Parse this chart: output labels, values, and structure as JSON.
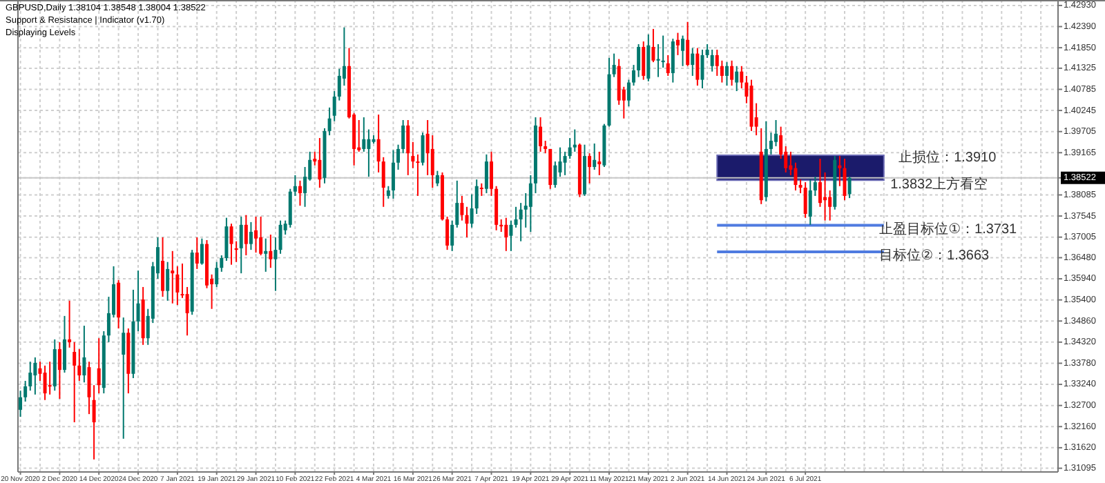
{
  "chart_data": {
    "type": "candlestick",
    "title": "GBPUSD,Daily  1.38104 1.38548 1.38004 1.38522",
    "subtitle": "Support & Resistance | Indicator (v1.70)",
    "annotations": [
      "Displaying Levels",
      "1.3832上方看空"
    ],
    "colors": [
      "#00786e",
      "#00786e",
      "#00786e",
      "#00786e",
      "#ff0000",
      "#ff0000",
      "#ff0000",
      "#00786e",
      "#ff0000",
      "#00786e",
      "#ff0000",
      "#ff0000",
      "#ff0000",
      "#00786e",
      "#ff0000",
      "#ff0000",
      "#ff0000",
      "#00786e",
      "#00786e",
      "#00786e",
      "#ff0000",
      "#00786e",
      "#ff0000",
      "#00786e",
      "#00786e",
      "#ff0000",
      "#00786e",
      "#00786e",
      "#00786e",
      "#ff0000",
      "#00786e",
      "#ff0000",
      "#ff0000",
      "#ff0000",
      "#ff0000",
      "#00786e",
      "#ff0000",
      "#00786e",
      "#ff0000",
      "#ff0000",
      "#00786e",
      "#00786e",
      "#00786e",
      "#ff0000",
      "#ff0000",
      "#00786e",
      "#ff0000",
      "#00786e",
      "#ff0000",
      "#ff0000",
      "#00786e",
      "#ff0000",
      "#00786e",
      "#00786e",
      "#00786e",
      "#00786e",
      "#00786e",
      "#ff0000",
      "#00786e",
      "#00786e",
      "#ff0000",
      "#ff0000",
      "#00786e",
      "#00786e",
      "#00786e",
      "#00786e",
      "#00786e",
      "#ff0000",
      "#ff0000",
      "#ff0000",
      "#00786e",
      "#00786e",
      "#00786e",
      "#ff0000",
      "#ff0000",
      "#00786e",
      "#00786e",
      "#00786e",
      "#00786e",
      "#ff0000",
      "#ff0000",
      "#ff0000",
      "#00786e",
      "#ff0000",
      "#ff0000",
      "#00786e",
      "#ff0000",
      "#ff0000",
      "#00786e",
      "#00786e",
      "#ff0000",
      "#ff0000",
      "#00786e",
      "#00786e",
      "#ff0000",
      "#00786e",
      "#ff0000",
      "#ff0000",
      "#ff0000",
      "#ff0000",
      "#00786e",
      "#00786e",
      "#00786e",
      "#00786e",
      "#00786e",
      "#00786e",
      "#ff0000",
      "#ff0000",
      "#ff0000",
      "#00786e",
      "#00786e",
      "#00786e",
      "#00786e",
      "#00786e",
      "#ff0000",
      "#00786e",
      "#ff0000",
      "#00786e",
      "#ff0000",
      "#00786e",
      "#00786e",
      "#00786e",
      "#ff0000",
      "#ff0000",
      "#00786e",
      "#00786e",
      "#00786e",
      "#ff0000",
      "#00786e",
      "#ff0000",
      "#00786e",
      "#00786e",
      "#ff0000",
      "#00786e",
      "#ff0000",
      "#00786e",
      "#ff0000",
      "#00786e",
      "#ff0000",
      "#00786e",
      "#00786e",
      "#00786e",
      "#ff0000",
      "#ff0000",
      "#00786e",
      "#ff0000",
      "#00786e",
      "#ff0000",
      "#ff0000",
      "#ff0000",
      "#ff0000",
      "#ff0000",
      "#00786e",
      "#00786e",
      "#00786e",
      "#ff0000",
      "#ff0000",
      "#ff0000",
      "#ff0000",
      "#ff0000",
      "#ff0000",
      "#00786e",
      "#00786e",
      "#ff0000",
      "#ff0000",
      "#ff0000",
      "#00786e",
      "#ff0000",
      "#ff0000",
      "#00786e",
      null,
      null,
      null,
      null,
      null,
      null,
      null,
      null,
      null,
      null,
      null,
      null,
      null,
      null,
      null,
      null,
      null,
      null,
      null,
      null,
      null,
      null,
      null,
      null,
      null,
      null,
      null,
      null,
      null,
      null,
      null,
      null,
      null,
      null,
      null,
      null,
      null,
      null,
      null,
      null,
      null,
      null
    ],
    "ylim": [
      1.31,
      1.4307
    ],
    "yticks": [
      {
        "value": 1.4293,
        "label": "1.42930"
      },
      {
        "value": 1.4239,
        "label": "1.42390"
      },
      {
        "value": 1.4185,
        "label": "1.41850"
      },
      {
        "value": 1.41325,
        "label": "1.41325"
      },
      {
        "value": 1.40785,
        "label": "1.40785"
      },
      {
        "value": 1.40245,
        "label": "1.40245"
      },
      {
        "value": 1.39705,
        "label": "1.39705"
      },
      {
        "value": 1.39165,
        "label": "1.39165"
      },
      {
        "value": 1.38522,
        "label": "1.38522"
      },
      {
        "value": 1.38085,
        "label": "1.38085"
      },
      {
        "value": 1.37545,
        "label": "1.37545"
      },
      {
        "value": 1.37005,
        "label": "1.37005"
      },
      {
        "value": 1.3648,
        "label": "1.36480"
      },
      {
        "value": 1.3594,
        "label": "1.35940"
      },
      {
        "value": 1.354,
        "label": "1.35400"
      },
      {
        "value": 1.3486,
        "label": "1.34860"
      },
      {
        "value": 1.3432,
        "label": "1.34320"
      },
      {
        "value": 1.3378,
        "label": "1.33780"
      },
      {
        "value": 1.3324,
        "label": "1.33240"
      },
      {
        "value": 1.327,
        "label": "1.32700"
      },
      {
        "value": 1.3216,
        "label": "1.32160"
      },
      {
        "value": 1.3162,
        "label": "1.31620"
      },
      {
        "value": 1.31095,
        "label": "1.31095"
      }
    ],
    "grid": true,
    "bands": [
      {
        "axis": "y",
        "from": 1.3846,
        "to": 1.391,
        "label": "止损位：1.3910",
        "color": "#1b1b6b"
      }
    ],
    "ref_lines": [
      {
        "axis": "y",
        "value": 1.38522,
        "color": "#c8c8c8"
      },
      {
        "axis": "y",
        "value": 1.3731,
        "label": "止盈目标位①：1.3731",
        "color": "#4f7be0"
      },
      {
        "axis": "y",
        "value": 1.3663,
        "label": "目标位②：1.3663",
        "color": "#4f7be0"
      }
    ],
    "categories": [
      "20 Nov 2020",
      null,
      null,
      null,
      null,
      null,
      null,
      null,
      "2 Dec 2020",
      null,
      null,
      null,
      null,
      null,
      null,
      null,
      "14 Dec 2020",
      null,
      null,
      null,
      null,
      null,
      null,
      null,
      "24 Dec 2020",
      null,
      null,
      null,
      null,
      null,
      null,
      null,
      "7 Jan 2021",
      null,
      null,
      null,
      null,
      null,
      null,
      null,
      "19 Jan 2021",
      null,
      null,
      null,
      null,
      null,
      null,
      null,
      "29 Jan 2021",
      null,
      null,
      null,
      null,
      null,
      null,
      null,
      "10 Feb 2021",
      null,
      null,
      null,
      null,
      null,
      null,
      null,
      "22 Feb 2021",
      null,
      null,
      null,
      null,
      null,
      null,
      null,
      "4 Mar 2021",
      null,
      null,
      null,
      null,
      null,
      null,
      null,
      "16 Mar 2021",
      null,
      null,
      null,
      null,
      null,
      null,
      null,
      "26 Mar 2021",
      null,
      null,
      null,
      null,
      null,
      null,
      null,
      "7 Apr 2021",
      null,
      null,
      null,
      null,
      null,
      null,
      null,
      "19 Apr 2021",
      null,
      null,
      null,
      null,
      null,
      null,
      null,
      "29 Apr 2021",
      null,
      null,
      null,
      null,
      null,
      null,
      null,
      "11 May 2021",
      null,
      null,
      null,
      null,
      null,
      null,
      null,
      "21 May 2021",
      null,
      null,
      null,
      null,
      null,
      null,
      null,
      "2 Jun 2021",
      null,
      null,
      null,
      null,
      null,
      null,
      null,
      "14 Jun 2021",
      null,
      null,
      null,
      null,
      null,
      null,
      null,
      "24 Jun 2021",
      null,
      null,
      null,
      null,
      null,
      null,
      null,
      "6 Jul 2021",
      null,
      null,
      null,
      null,
      null,
      null,
      null,
      null,
      null,
      null,
      null,
      null,
      null,
      null,
      null,
      null,
      null,
      null,
      null,
      null,
      null,
      null,
      null,
      null,
      null,
      null,
      null,
      null,
      null,
      null,
      null,
      null,
      null,
      null,
      null,
      null,
      null,
      null,
      null,
      null,
      null,
      null,
      null,
      null,
      null,
      null,
      null,
      null,
      null,
      null,
      null
    ],
    "ohlc": [
      [
        1.3259,
        1.3308,
        1.3241,
        1.3291
      ],
      [
        1.3291,
        1.3333,
        1.328,
        1.3319
      ],
      [
        1.3319,
        1.3382,
        1.3308,
        1.3354
      ],
      [
        1.3347,
        1.3393,
        1.3298,
        1.3379
      ],
      [
        1.3365,
        1.3382,
        1.3333,
        1.3351
      ],
      [
        1.3354,
        1.3372,
        1.3284,
        1.3301
      ],
      [
        1.3322,
        1.3382,
        1.3298,
        1.3319
      ],
      [
        1.3319,
        1.3439,
        1.3308,
        1.3414
      ],
      [
        1.3414,
        1.3432,
        1.3287,
        1.3361
      ],
      [
        1.3361,
        1.3499,
        1.3354,
        1.3439
      ],
      [
        1.3439,
        1.3538,
        1.3418,
        1.3432
      ],
      [
        1.3407,
        1.3432,
        1.3227,
        1.3372
      ],
      [
        1.3372,
        1.3414,
        1.3333,
        1.3347
      ],
      [
        1.3347,
        1.3474,
        1.3329,
        1.3393
      ],
      [
        1.3368,
        1.3382,
        1.3248,
        1.3291
      ],
      [
        1.3284,
        1.3322,
        1.3132,
        1.3227
      ],
      [
        1.3365,
        1.3442,
        1.3301,
        1.3322
      ],
      [
        1.3315,
        1.346,
        1.3301,
        1.3449
      ],
      [
        1.3449,
        1.3548,
        1.3432,
        1.3506
      ],
      [
        1.3502,
        1.3626,
        1.3495,
        1.358
      ],
      [
        1.3584,
        1.3591,
        1.3467,
        1.3495
      ],
      [
        1.34,
        1.3495,
        1.3185,
        1.3456
      ],
      [
        1.3456,
        1.3467,
        1.3301,
        1.3351
      ],
      [
        1.3351,
        1.3566,
        1.334,
        1.3485
      ],
      [
        1.3485,
        1.3615,
        1.346,
        1.3531
      ],
      [
        1.3541,
        1.3573,
        1.3425,
        1.3442
      ],
      [
        1.3442,
        1.3517,
        1.3425,
        1.3499
      ],
      [
        1.3492,
        1.3637,
        1.3481,
        1.3626
      ],
      [
        1.3608,
        1.37,
        1.3594,
        1.3675
      ],
      [
        1.364,
        1.37,
        1.3548,
        1.3563
      ],
      [
        1.3563,
        1.3637,
        1.3538,
        1.3619
      ],
      [
        1.3615,
        1.3665,
        1.3531,
        1.3608
      ],
      [
        1.3605,
        1.3626,
        1.3527,
        1.3559
      ],
      [
        1.3555,
        1.3633,
        1.3545,
        1.3552
      ],
      [
        1.3555,
        1.3573,
        1.3449,
        1.3506
      ],
      [
        1.351,
        1.3668,
        1.3502,
        1.3661
      ],
      [
        1.3661,
        1.37,
        1.3619,
        1.3633
      ],
      [
        1.3633,
        1.3697,
        1.363,
        1.3683
      ],
      [
        1.3683,
        1.3693,
        1.357,
        1.3577
      ],
      [
        1.3594,
        1.3605,
        1.3517,
        1.358
      ],
      [
        1.358,
        1.3637,
        1.3573,
        1.3622
      ],
      [
        1.3622,
        1.3654,
        1.3612,
        1.3647
      ],
      [
        1.3647,
        1.375,
        1.364,
        1.3728
      ],
      [
        1.3728,
        1.3735,
        1.363,
        1.3683
      ],
      [
        1.3672,
        1.369,
        1.3637,
        1.3668
      ],
      [
        1.3672,
        1.3753,
        1.3608,
        1.3732
      ],
      [
        1.3732,
        1.3757,
        1.3654,
        1.3683
      ],
      [
        1.3683,
        1.3739,
        1.3668,
        1.3714
      ],
      [
        1.3718,
        1.3753,
        1.3661,
        1.3697
      ],
      [
        1.37,
        1.3753,
        1.3654,
        1.3658
      ],
      [
        1.3658,
        1.3697,
        1.3612,
        1.3665
      ],
      [
        1.3665,
        1.3707,
        1.3622,
        1.3644
      ],
      [
        1.3644,
        1.37,
        1.3563,
        1.3668
      ],
      [
        1.3668,
        1.3743,
        1.3658,
        1.3732
      ],
      [
        1.3718,
        1.3743,
        1.3707,
        1.3735
      ],
      [
        1.3732,
        1.3824,
        1.3725,
        1.3817
      ],
      [
        1.3817,
        1.3859,
        1.3806,
        1.3831
      ],
      [
        1.3831,
        1.3845,
        1.3781,
        1.3813
      ],
      [
        1.3813,
        1.388,
        1.3778,
        1.3855
      ],
      [
        1.3848,
        1.3919,
        1.3845,
        1.3898
      ],
      [
        1.3901,
        1.3919,
        1.3884,
        1.3894
      ],
      [
        1.3898,
        1.3954,
        1.3827,
        1.3848
      ],
      [
        1.3852,
        1.3979,
        1.3838,
        1.3972
      ],
      [
        1.3972,
        1.4032,
        1.3961,
        1.4004
      ],
      [
        1.4011,
        1.4074,
        1.3997,
        1.406
      ],
      [
        1.406,
        1.4131,
        1.405,
        1.4113
      ],
      [
        1.4106,
        1.4237,
        1.4088,
        1.4138
      ],
      [
        1.4138,
        1.4184,
        1.4004,
        1.4007
      ],
      [
        1.4014,
        1.4018,
        1.3884,
        1.3926
      ],
      [
        1.393,
        1.4,
        1.3919,
        1.3923
      ],
      [
        1.3926,
        1.4007,
        1.3919,
        1.3951
      ],
      [
        1.3926,
        1.3976,
        1.3855,
        1.3951
      ],
      [
        1.3944,
        1.3961,
        1.394,
        1.3951
      ],
      [
        1.3951,
        1.4014,
        1.3866,
        1.3894
      ],
      [
        1.3894,
        1.3905,
        1.3778,
        1.3827
      ],
      [
        1.3806,
        1.3831,
        1.3799,
        1.382
      ],
      [
        1.382,
        1.3923,
        1.3799,
        1.3891
      ],
      [
        1.3891,
        1.3937,
        1.3873,
        1.3926
      ],
      [
        1.3926,
        1.4,
        1.3915,
        1.3986
      ],
      [
        1.3986,
        1.4,
        1.3859,
        1.3915
      ],
      [
        1.3908,
        1.3944,
        1.3877,
        1.3894
      ],
      [
        1.3894,
        1.3912,
        1.3806,
        1.3891
      ],
      [
        1.3891,
        1.3968,
        1.3884,
        1.3961
      ],
      [
        1.3965,
        1.4,
        1.3859,
        1.3915
      ],
      [
        1.3926,
        1.3961,
        1.3827,
        1.3859
      ],
      [
        1.3838,
        1.387,
        1.3831,
        1.3859
      ],
      [
        1.3859,
        1.3866,
        1.3743,
        1.3746
      ],
      [
        1.3746,
        1.3753,
        1.3668,
        1.3679
      ],
      [
        1.3679,
        1.3743,
        1.3665,
        1.3732
      ],
      [
        1.3732,
        1.3845,
        1.3725,
        1.3788
      ],
      [
        1.3788,
        1.3806,
        1.3743,
        1.3757
      ],
      [
        1.3757,
        1.3778,
        1.37,
        1.3735
      ],
      [
        1.3735,
        1.381,
        1.3725,
        1.3774
      ],
      [
        1.3774,
        1.3848,
        1.376,
        1.3831
      ],
      [
        1.3827,
        1.3838,
        1.3806,
        1.3824
      ],
      [
        1.3824,
        1.3912,
        1.3813,
        1.3894
      ],
      [
        1.3894,
        1.3919,
        1.3806,
        1.3824
      ],
      [
        1.3824,
        1.3831,
        1.3718,
        1.3732
      ],
      [
        1.3732,
        1.3746,
        1.3714,
        1.3728
      ],
      [
        1.3732,
        1.375,
        1.3665,
        1.37
      ],
      [
        1.3704,
        1.3743,
        1.3665,
        1.3732
      ],
      [
        1.3732,
        1.3778,
        1.3725,
        1.3746
      ],
      [
        1.3746,
        1.3788,
        1.369,
        1.3771
      ],
      [
        1.3771,
        1.3813,
        1.3725,
        1.3781
      ],
      [
        1.3778,
        1.3859,
        1.3714,
        1.3838
      ],
      [
        1.3838,
        1.4007,
        1.3813,
        1.3986
      ],
      [
        1.3983,
        1.4007,
        1.3919,
        1.3933
      ],
      [
        1.3933,
        1.3947,
        1.3915,
        1.3926
      ],
      [
        1.3926,
        1.3926,
        1.3824,
        1.3834
      ],
      [
        1.3834,
        1.3894,
        1.3827,
        1.3884
      ],
      [
        1.3866,
        1.393,
        1.3855,
        1.3894
      ],
      [
        1.3891,
        1.3919,
        1.3859,
        1.3908
      ],
      [
        1.3908,
        1.3954,
        1.3901,
        1.393
      ],
      [
        1.393,
        1.3976,
        1.3919,
        1.3937
      ],
      [
        1.3937,
        1.394,
        1.3803,
        1.381
      ],
      [
        1.381,
        1.3937,
        1.3806,
        1.3908
      ],
      [
        1.3908,
        1.3915,
        1.3838,
        1.388
      ],
      [
        1.388,
        1.394,
        1.3873,
        1.3898
      ],
      [
        1.3894,
        1.3919,
        1.3859,
        1.3887
      ],
      [
        1.3884,
        1.399,
        1.388,
        1.3986
      ],
      [
        1.3986,
        1.4159,
        1.3983,
        1.4117
      ],
      [
        1.4117,
        1.417,
        1.411,
        1.4141
      ],
      [
        1.4138,
        1.4156,
        1.4039,
        1.405
      ],
      [
        1.4078,
        1.4085,
        1.4004,
        1.405
      ],
      [
        1.405,
        1.4103,
        1.4035,
        1.4096
      ],
      [
        1.4096,
        1.4141,
        1.4088,
        1.4127
      ],
      [
        1.4127,
        1.4194,
        1.411,
        1.4187
      ],
      [
        1.4187,
        1.4201,
        1.4103,
        1.4113
      ],
      [
        1.4106,
        1.4219,
        1.4099,
        1.4191
      ],
      [
        1.4187,
        1.4233,
        1.4148,
        1.4152
      ],
      [
        1.4152,
        1.4194,
        1.411,
        1.4156
      ],
      [
        1.4148,
        1.4216,
        1.4134,
        1.4152
      ],
      [
        1.4145,
        1.4166,
        1.4113,
        1.412
      ],
      [
        1.412,
        1.4208,
        1.4096,
        1.4201
      ],
      [
        1.4205,
        1.4223,
        1.4166,
        1.4191
      ],
      [
        1.4177,
        1.4216,
        1.4138,
        1.4208
      ],
      [
        1.4205,
        1.4251,
        1.4138,
        1.4141
      ],
      [
        1.4141,
        1.4184,
        1.4113,
        1.417
      ],
      [
        1.417,
        1.4184,
        1.4088,
        1.4103
      ],
      [
        1.4103,
        1.418,
        1.4081,
        1.4166
      ],
      [
        1.4166,
        1.4194,
        1.4159,
        1.418
      ],
      [
        1.4138,
        1.418,
        1.4124,
        1.4166
      ],
      [
        1.4166,
        1.418,
        1.4113,
        1.4138
      ],
      [
        1.4138,
        1.4152,
        1.4096,
        1.4113
      ],
      [
        1.4113,
        1.4148,
        1.4088,
        1.4138
      ],
      [
        1.4138,
        1.4152,
        1.4088,
        1.4103
      ],
      [
        1.4096,
        1.4138,
        1.4074,
        1.4124
      ],
      [
        1.4124,
        1.4138,
        1.4081,
        1.4096
      ],
      [
        1.4096,
        1.4113,
        1.4043,
        1.406
      ],
      [
        1.4088,
        1.4103,
        1.3972,
        1.3983
      ],
      [
        1.4007,
        1.4043,
        1.3961,
        1.3983
      ],
      [
        1.3919,
        1.3979,
        1.3785,
        1.3795
      ],
      [
        1.3803,
        1.3997,
        1.3792,
        1.3926
      ],
      [
        1.3926,
        1.3968,
        1.3912,
        1.3947
      ],
      [
        1.3944,
        1.4,
        1.3933,
        1.3965
      ],
      [
        1.3961,
        1.3983,
        1.3901,
        1.3912
      ],
      [
        1.3919,
        1.3933,
        1.3866,
        1.3877
      ],
      [
        1.3884,
        1.3919,
        1.3859,
        1.3873
      ],
      [
        1.3877,
        1.3891,
        1.382,
        1.3834
      ],
      [
        1.3834,
        1.3848,
        1.3813,
        1.3827
      ],
      [
        1.3827,
        1.3841,
        1.375,
        1.376
      ],
      [
        1.3753,
        1.3848,
        1.3732,
        1.382
      ],
      [
        1.382,
        1.3855,
        1.3806,
        1.3841
      ],
      [
        1.3841,
        1.3901,
        1.3778,
        1.3788
      ],
      [
        1.3803,
        1.3866,
        1.3743,
        1.3795
      ],
      [
        1.3803,
        1.382,
        1.3743,
        1.3778
      ],
      [
        1.3778,
        1.3908,
        1.3771,
        1.3898
      ],
      [
        1.3884,
        1.3908,
        1.3831,
        1.3877
      ],
      [
        1.3877,
        1.3901,
        1.3795,
        1.3806
      ],
      [
        1.38104,
        1.38548,
        1.38004,
        1.38522
      ],
      null,
      null,
      null,
      null,
      null,
      null,
      null,
      null,
      null,
      null,
      null,
      null,
      null,
      null,
      null,
      null,
      null,
      null,
      null,
      null,
      null,
      null,
      null,
      null,
      null,
      null,
      null,
      null,
      null,
      null,
      null,
      null,
      null,
      null,
      null,
      null,
      null,
      null,
      null,
      null,
      null,
      null
    ]
  }
}
